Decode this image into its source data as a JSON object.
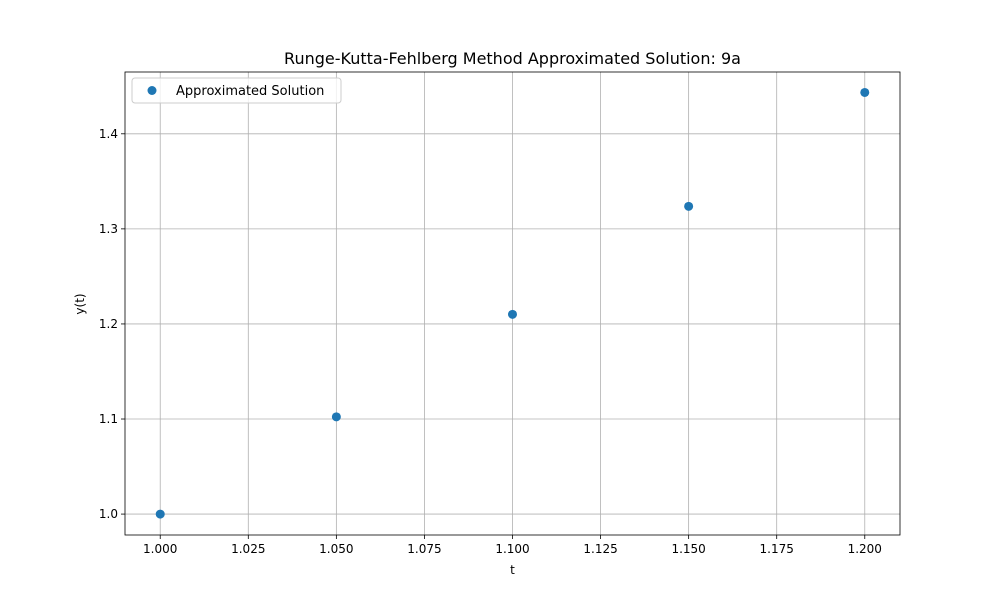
{
  "chart_data": {
    "type": "scatter",
    "title": "Runge-Kutta-Fehlberg Method Approximated Solution: 9a",
    "xlabel": "t",
    "ylabel": "y(t)",
    "xlim": [
      0.99,
      1.21
    ],
    "ylim": [
      0.978,
      1.465
    ],
    "xticks": [
      1.0,
      1.025,
      1.05,
      1.075,
      1.1,
      1.125,
      1.15,
      1.175,
      1.2
    ],
    "xtick_labels": [
      "1.000",
      "1.025",
      "1.050",
      "1.075",
      "1.100",
      "1.125",
      "1.150",
      "1.175",
      "1.200"
    ],
    "yticks": [
      1.0,
      1.1,
      1.2,
      1.3,
      1.4
    ],
    "ytick_labels": [
      "1.0",
      "1.1",
      "1.2",
      "1.3",
      "1.4"
    ],
    "grid": true,
    "legend_position": "top-left",
    "series": [
      {
        "name": "Approximated Solution",
        "color": "#1f77b4",
        "marker": "circle",
        "x": [
          1.0,
          1.05,
          1.1,
          1.15,
          1.2
        ],
        "y": [
          1.0,
          1.1023,
          1.2101,
          1.3237,
          1.4435
        ]
      }
    ]
  }
}
